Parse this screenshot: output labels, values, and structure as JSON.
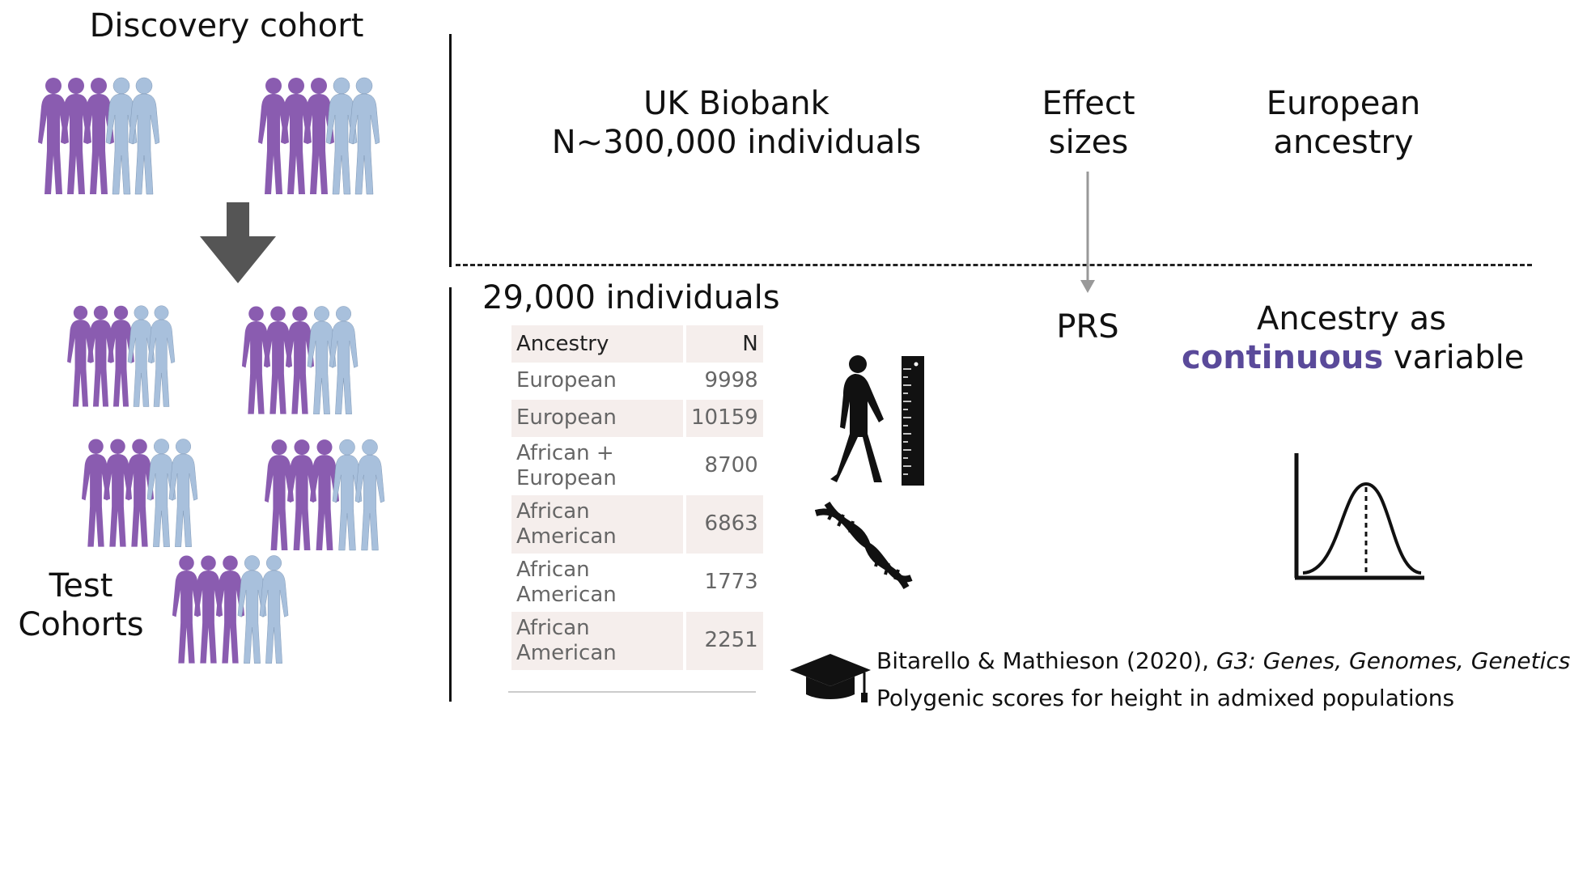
{
  "left": {
    "discovery_title": "Discovery cohort",
    "test_label_line1": "Test",
    "test_label_line2": "Cohorts"
  },
  "top_row": {
    "biobank_line1": "UK Biobank",
    "biobank_line2": "N~300,000 individuals",
    "effect_line1": "Effect",
    "effect_line2": "sizes",
    "european_line1": "European",
    "european_line2": "ancestry"
  },
  "bottom_row": {
    "individuals": "29,000 individuals",
    "prs": "PRS",
    "ancestry_line1": "Ancestry as",
    "ancestry_emph": "continuous",
    "ancestry_rest": " variable"
  },
  "table": {
    "header_ancestry": "Ancestry",
    "header_n": "N",
    "rows": [
      {
        "line1": "European",
        "line2": "",
        "n": "9998"
      },
      {
        "line1": "European",
        "line2": "",
        "n": "10159"
      },
      {
        "line1": "African +",
        "line2": "European",
        "n": "8700"
      },
      {
        "line1": "African",
        "line2": "American",
        "n": "6863"
      },
      {
        "line1": "African",
        "line2": "American",
        "n": "1773"
      },
      {
        "line1": "African",
        "line2": "American",
        "n": "2251"
      }
    ]
  },
  "reference": {
    "authors": "Bitarello & Mathieson (2020), ",
    "journal": "G3: Genes, Genomes, Genetics",
    "title": "Polygenic scores for height in admixed populations"
  },
  "colors": {
    "purple": "#8a5cb0",
    "light_blue": "#a8c0dc",
    "accent_text": "#5a4a9a"
  }
}
